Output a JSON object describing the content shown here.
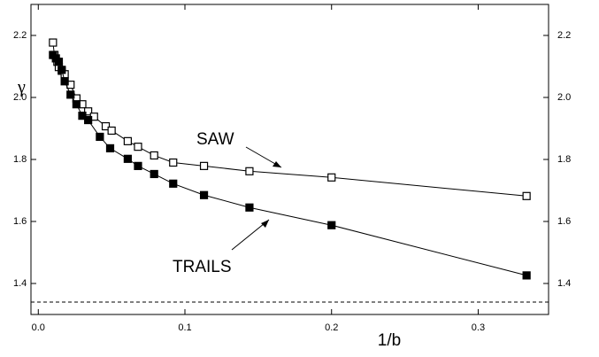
{
  "chart_data": {
    "type": "line",
    "x_label": "1/b",
    "y_label": "γ",
    "xlim": [
      -0.005,
      0.348
    ],
    "ylim": [
      1.3,
      2.3
    ],
    "y2lim": [
      1.3,
      2.3
    ],
    "xticks": [
      {
        "value": 0,
        "label": "0.0"
      },
      {
        "value": 0.1,
        "label": "0.1"
      },
      {
        "value": 0.2,
        "label": "0.2"
      },
      {
        "value": 0.3,
        "label": "0.3"
      }
    ],
    "yticks": [
      {
        "value": 1.4,
        "label": "1.4"
      },
      {
        "value": 1.6,
        "label": "1.6"
      },
      {
        "value": 1.8,
        "label": "1.8"
      },
      {
        "value": 2.0,
        "label": "2.0"
      },
      {
        "value": 2.2,
        "label": "2.2"
      }
    ],
    "y2ticks": [
      {
        "value": 1.4,
        "label": "1.4"
      },
      {
        "value": 1.6,
        "label": "1.6"
      },
      {
        "value": 1.8,
        "label": "1.8"
      },
      {
        "value": 2.0,
        "label": "2.0"
      },
      {
        "value": 2.2,
        "label": "2.2"
      }
    ],
    "hline": 1.34,
    "series": [
      {
        "name": "SAW",
        "color": "#000",
        "marker": "open-square",
        "x": [
          0.01,
          0.011,
          0.013,
          0.014,
          0.016,
          0.018,
          0.022,
          0.026,
          0.03,
          0.034,
          0.038,
          0.046,
          0.05,
          0.061,
          0.068,
          0.079,
          0.092,
          0.113,
          0.144,
          0.2,
          0.333
        ],
        "values": [
          2.177,
          2.137,
          2.115,
          2.098,
          2.086,
          2.075,
          2.041,
          1.997,
          1.978,
          1.955,
          1.938,
          1.907,
          1.893,
          1.859,
          1.841,
          1.813,
          1.79,
          1.779,
          1.762,
          1.742,
          1.682
        ]
      },
      {
        "name": "TRAILS",
        "color": "#000",
        "marker": "filled-square",
        "x": [
          0.01,
          0.012,
          0.014,
          0.016,
          0.018,
          0.022,
          0.026,
          0.03,
          0.034,
          0.042,
          0.049,
          0.061,
          0.068,
          0.079,
          0.092,
          0.113,
          0.144,
          0.2,
          0.333
        ],
        "values": [
          2.137,
          2.126,
          2.115,
          2.089,
          2.052,
          2.009,
          1.978,
          1.941,
          1.927,
          1.873,
          1.836,
          1.802,
          1.779,
          1.753,
          1.722,
          1.685,
          1.645,
          1.588,
          1.426
        ]
      }
    ]
  }
}
